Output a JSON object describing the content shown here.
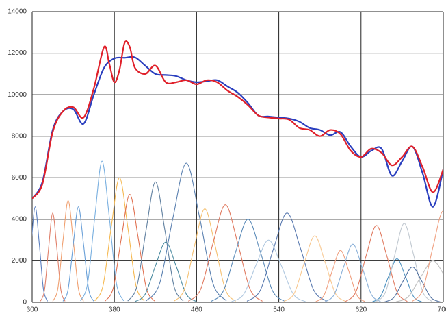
{
  "chart_data": {
    "type": "line",
    "xlim": [
      300,
      700
    ],
    "ylim": [
      0,
      14000
    ],
    "xticks": [
      300,
      380,
      460,
      540,
      620,
      700
    ],
    "yticks": [
      0,
      2000,
      4000,
      6000,
      8000,
      10000,
      12000,
      14000
    ],
    "grid": true,
    "series": [
      {
        "color": "#5b7fbf",
        "x": [
          291,
          295,
          299,
          303,
          307,
          311,
          315
        ],
        "values": [
          50,
          620,
          2790,
          4600,
          2790,
          620,
          50
        ]
      },
      {
        "color": "#e0806a",
        "x": [
          308,
          312,
          316,
          320,
          324,
          328,
          332
        ],
        "values": [
          50,
          580,
          2610,
          4300,
          2610,
          580,
          50
        ]
      },
      {
        "color": "#f0a070",
        "x": [
          320,
          325,
          330,
          335,
          340,
          345,
          350
        ],
        "values": [
          50,
          660,
          2970,
          4900,
          2970,
          660,
          50
        ]
      },
      {
        "color": "#6aa0d8",
        "x": [
          330,
          335,
          340,
          345,
          350,
          355,
          360
        ],
        "values": [
          50,
          620,
          2790,
          4600,
          2790,
          620,
          50
        ]
      },
      {
        "color": "#7ab0e0",
        "x": [
          347,
          354,
          361,
          368,
          375,
          382,
          389
        ],
        "values": [
          70,
          920,
          4130,
          6800,
          4130,
          920,
          70
        ]
      },
      {
        "color": "#f5b850",
        "x": [
          361,
          369,
          377,
          385,
          393,
          401,
          409
        ],
        "values": [
          70,
          810,
          3640,
          6000,
          3640,
          810,
          70
        ]
      },
      {
        "color": "#e07050",
        "x": [
          371,
          379,
          387,
          395,
          403,
          411,
          419
        ],
        "values": [
          60,
          700,
          3160,
          5200,
          3160,
          700,
          60
        ]
      },
      {
        "color": "#6080a0",
        "x": [
          393,
          402,
          411,
          420,
          429,
          438,
          447
        ],
        "values": [
          60,
          780,
          3520,
          5800,
          3520,
          780,
          60
        ]
      },
      {
        "color": "#4a8aa0",
        "x": [
          400,
          410,
          420,
          430,
          440,
          450,
          460
        ],
        "values": [
          30,
          390,
          1760,
          2900,
          1760,
          390,
          30
        ]
      },
      {
        "color": "#5a80b0",
        "x": [
          411,
          424,
          437,
          450,
          463,
          476,
          489
        ],
        "values": [
          70,
          900,
          4070,
          6700,
          4070,
          900,
          70
        ]
      },
      {
        "color": "#f5c070",
        "x": [
          438,
          448,
          458,
          468,
          478,
          488,
          498
        ],
        "values": [
          50,
          610,
          2730,
          4500,
          2730,
          610,
          50
        ]
      },
      {
        "color": "#e07a60",
        "x": [
          452,
          464,
          476,
          488,
          500,
          512,
          524
        ],
        "values": [
          50,
          630,
          2850,
          4700,
          2850,
          630,
          50
        ]
      },
      {
        "color": "#5a8ab8",
        "x": [
          474,
          486,
          498,
          510,
          522,
          534,
          546
        ],
        "values": [
          40,
          540,
          2430,
          4000,
          2430,
          540,
          40
        ]
      },
      {
        "color": "#b0c8e0",
        "x": [
          494,
          506,
          518,
          530,
          542,
          554,
          566
        ],
        "values": [
          30,
          400,
          1820,
          3000,
          1820,
          400,
          30
        ]
      },
      {
        "color": "#5a7ab0",
        "x": [
          509,
          522,
          535,
          548,
          561,
          574,
          587
        ],
        "values": [
          50,
          580,
          2610,
          4300,
          2610,
          580,
          50
        ]
      },
      {
        "color": "#f8c890",
        "x": [
          545,
          555,
          565,
          575,
          585,
          595,
          605
        ],
        "values": [
          40,
          430,
          1940,
          3200,
          1940,
          430,
          40
        ]
      },
      {
        "color": "#f0a080",
        "x": [
          576,
          584,
          592,
          600,
          608,
          616,
          624
        ],
        "values": [
          30,
          340,
          1520,
          2500,
          1520,
          340,
          30
        ]
      },
      {
        "color": "#8ab0d8",
        "x": [
          585,
          594,
          603,
          612,
          621,
          630,
          639
        ],
        "values": [
          30,
          380,
          1700,
          2800,
          1700,
          380,
          30
        ]
      },
      {
        "color": "#e07a60",
        "x": [
          605,
          615,
          625,
          635,
          645,
          655,
          665
        ],
        "values": [
          40,
          500,
          2250,
          3700,
          2250,
          500,
          40
        ]
      },
      {
        "color": "#4a90c0",
        "x": [
          631,
          639,
          647,
          655,
          663,
          671,
          679
        ],
        "values": [
          20,
          280,
          1270,
          2100,
          1270,
          280,
          20
        ]
      },
      {
        "color": "#c0c8d0",
        "x": [
          635,
          644,
          653,
          662,
          671,
          680,
          689
        ],
        "values": [
          40,
          510,
          2310,
          3800,
          2310,
          510,
          40
        ]
      },
      {
        "color": "#5070a0",
        "x": [
          643,
          652,
          661,
          670,
          679,
          688,
          697
        ],
        "values": [
          20,
          230,
          1030,
          1700,
          1030,
          230,
          20
        ]
      },
      {
        "color": "#c0c0c0",
        "x": [
          654,
          666,
          678,
          690,
          702,
          714,
          726
        ],
        "values": [
          20,
          270,
          1210,
          2000,
          1210,
          270,
          20
        ]
      },
      {
        "color": "#f0a080",
        "x": [
          670,
          680,
          690,
          700,
          710,
          720,
          730
        ],
        "values": [
          50,
          590,
          2670,
          4400,
          2670,
          590,
          50
        ]
      },
      {
        "color": "#2a3fbf",
        "x": [
          300,
          310,
          320,
          330,
          340,
          350,
          360,
          370,
          380,
          390,
          400,
          410,
          420,
          430,
          440,
          450,
          460,
          470,
          480,
          490,
          500,
          510,
          520,
          530,
          540,
          550,
          560,
          570,
          580,
          590,
          600,
          610,
          620,
          630,
          640,
          650,
          660,
          670,
          680,
          690,
          700
        ],
        "values": [
          5000,
          5800,
          8300,
          9200,
          9300,
          8600,
          10000,
          11300,
          11750,
          11780,
          11800,
          11400,
          11000,
          10950,
          10900,
          10700,
          10600,
          10650,
          10700,
          10400,
          10100,
          9600,
          9000,
          8950,
          8900,
          8850,
          8700,
          8400,
          8300,
          8050,
          8200,
          7500,
          7000,
          7300,
          7400,
          6100,
          6800,
          7500,
          6200,
          4600,
          6400
        ]
      },
      {
        "color": "#e0202a",
        "x": [
          300,
          310,
          320,
          330,
          340,
          350,
          360,
          370,
          375,
          380,
          385,
          390,
          395,
          400,
          410,
          420,
          430,
          440,
          450,
          460,
          470,
          480,
          490,
          500,
          510,
          520,
          530,
          540,
          550,
          560,
          570,
          580,
          590,
          600,
          610,
          620,
          630,
          640,
          650,
          660,
          670,
          680,
          690,
          700
        ],
        "values": [
          5000,
          5700,
          8200,
          9200,
          9400,
          8900,
          10300,
          12300,
          11500,
          10600,
          11200,
          12500,
          12300,
          11300,
          11000,
          11400,
          10600,
          10600,
          10700,
          10500,
          10700,
          10600,
          10200,
          9900,
          9500,
          9000,
          8900,
          8850,
          8800,
          8400,
          8300,
          8000,
          8300,
          8100,
          7300,
          7000,
          7400,
          7200,
          6600,
          7000,
          7500,
          6500,
          5300,
          6400
        ]
      }
    ]
  }
}
